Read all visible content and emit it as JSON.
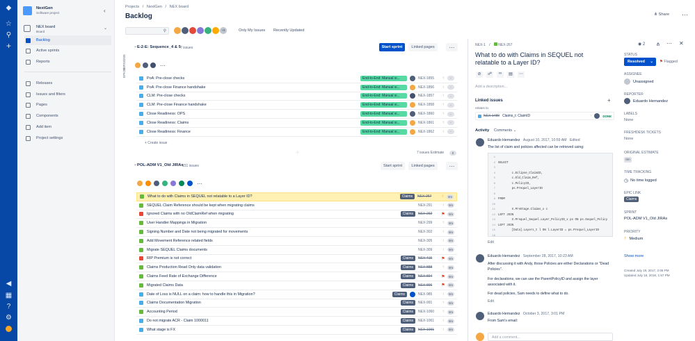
{
  "project": {
    "name": "NextGen",
    "type": "Software project"
  },
  "board": {
    "name": "NEX board",
    "type": "Board"
  },
  "sidebar": {
    "items": [
      {
        "label": "Backlog"
      },
      {
        "label": "Active sprints"
      },
      {
        "label": "Reports"
      },
      {
        "label": "Releases"
      },
      {
        "label": "Issues and filters"
      },
      {
        "label": "Pages"
      },
      {
        "label": "Components"
      },
      {
        "label": "Add item"
      },
      {
        "label": "Project settings"
      }
    ]
  },
  "breadcrumb": {
    "a": "Projects",
    "b": "NextGen",
    "c": "NEX board",
    "sep": "/"
  },
  "page_title": "Backlog",
  "filters": {
    "more": "+9",
    "only_my": "Only My Issues",
    "recent": "Recently Updated"
  },
  "share": "Share",
  "side_labels": {
    "versions": "VERSIONS",
    "epics": "EPICS"
  },
  "sprint1": {
    "name": "E-2-E: Sequence_4 & 5",
    "count": "7 issues",
    "start": "Start sprint",
    "linked": "Linked pages",
    "issues": [
      {
        "summary": "PoA: Pre-close checks",
        "epic": "End-to-End: Manual si...",
        "key": "NEX-1855"
      },
      {
        "summary": "PoA: Pre-close Finance handshake",
        "epic": "End-to-End: Manual si...",
        "key": "NEX-1856"
      },
      {
        "summary": "CLM: Pre-close checks",
        "epic": "End-to-End: Manual si...",
        "key": "NEX-1857"
      },
      {
        "summary": "CLM: Pre-close Finance handshake",
        "epic": "End-to-End: Manual si...",
        "key": "NEX-1858"
      },
      {
        "summary": "Close Readiness: OPS",
        "epic": "End-to-End: Manual si...",
        "key": "NEX-1860"
      },
      {
        "summary": "Close Readiness: Claims",
        "epic": "End-to-End: Manual si...",
        "key": "NEX-1861"
      },
      {
        "summary": "Close Readiness: Finance",
        "epic": "End-to-End: Manual si...",
        "key": "NEX-1862"
      }
    ],
    "create": "+ Create issue",
    "footer_count": "7 issues",
    "estimate_label": "Estimate",
    "estimate_value": "0"
  },
  "sprint2": {
    "name": "POL-ADM V1_Old JIRAs",
    "count": "151 issues",
    "start": "Start sprint",
    "linked": "Linked pages",
    "issues": [
      {
        "summary": "What to do with Claims in SEQUEL not relatable to a Layer ID?",
        "epic": "Claims",
        "key": "NEX-267",
        "est": "0m"
      },
      {
        "summary": "SEQUEL Claim Reference should be kept when migrating claims",
        "epic": "",
        "key": "NEX-291",
        "est": "0m"
      },
      {
        "summary": "Ignored Claims with no OldClaimRef when migrating",
        "epic": "Claims",
        "key": "NEX-292",
        "est": "0m"
      },
      {
        "summary": "User Handler Mappings in Migration",
        "epic": "",
        "key": "NEX-299",
        "est": "0m"
      },
      {
        "summary": "Signing Number and Date not being migrated for movements",
        "epic": "",
        "key": "NEX-302",
        "est": "0m"
      },
      {
        "summary": "Add Movement Reference related fields",
        "epic": "",
        "key": "NEX-305",
        "est": "0m"
      },
      {
        "summary": "Migrate SEQUEL Claims documents",
        "epic": "",
        "key": "NEX-309",
        "est": "0m"
      },
      {
        "summary": "RIP Premium is not correct",
        "epic": "Claims",
        "key": "NEX-415",
        "est": "0m"
      },
      {
        "summary": "Claims Production Read Only data validation",
        "epic": "Claims",
        "key": "NEX-888",
        "est": "0m"
      },
      {
        "summary": "Claims Feed Rate of Exchange Difference",
        "epic": "Claims",
        "key": "NEX-894",
        "est": "0m"
      },
      {
        "summary": "Migrated Claims Data",
        "epic": "Claims",
        "key": "NEX-896",
        "est": "0m"
      },
      {
        "summary": "Date of Loss is NULL on a claim: how to handle this in Migration?",
        "epic": "Claims",
        "key": "NEX-985",
        "est": "0m"
      },
      {
        "summary": "Claims Documentation Migration",
        "epic": "Claims",
        "key": "NEX-991",
        "est": "0m"
      },
      {
        "summary": "Accounting Period",
        "epic": "Claims",
        "key": "NEX-1060",
        "est": "0m"
      },
      {
        "summary": "Do not migrate ACR - Claim 1000011",
        "epic": "Claims",
        "key": "NEX-1061",
        "est": "0m"
      },
      {
        "summary": "What stage is FX",
        "epic": "Claims",
        "key": "NEX-1091",
        "est": "0m"
      }
    ]
  },
  "detail": {
    "crumb_parent": "NEX-1",
    "crumb_key": "NEX-267",
    "watchers": "2",
    "title": "What to do with Claims in SEQUEL not relatable to a Layer ID?",
    "desc_placeholder": "Add a description...",
    "linked_title": "Linked issues",
    "relates_to": "relates to",
    "link_key": "NEX-1489",
    "link_summary": "Claims_t: ClaimID",
    "link_status": "DONE",
    "activity": "Activity",
    "comments_label": "Comments",
    "comment1": {
      "author": "Eduardo Hernandez",
      "date": "August 10, 2017, 10:59 AM",
      "edited": "Edited",
      "text": "The list of claim and policies affected can be retrieved using:",
      "code": [
        "SELECT",
        "        c.Eclipse_ClaimID,",
        "        c.Old_Claim_Ref,",
        "        c.PolicyID,",
        "        ps.Prequel_LayerID",
        "FROM",
        "        X.PreStage.Claims_x c",
        "LEFT JOIN",
        "        X.Prequel_Sequel.Layer_PolicyID_x ps ON ps.Sequel_Policy",
        "LEFT JOIN",
        "        [Data].Layers_t l ON l.LayerID = ps.Prequel_LayerID",
        "WHERE",
        "        l.LayerID IS NULL"
      ],
      "gutter": [
        "1",
        "2",
        "3",
        "4",
        "5",
        "6",
        "7",
        "8",
        "9",
        "10",
        "11",
        "12",
        "13",
        "14",
        "15",
        "16"
      ],
      "edit": "Edit"
    },
    "comment2": {
      "author": "Eduardo Hernandez",
      "date": "September 28, 2017, 10:23 AM",
      "p1": "After discussing it with Andy, those Policies are either Declarations or \"Dead Policies\".",
      "p2": "For declarations, we can use the ParentPolicyID and assign the layer associated with it.",
      "p3": "For dead policies, Sam needs to define what to do.",
      "edit": "Edit"
    },
    "comment3": {
      "author": "Eduardo Hernandez",
      "date": "October 3, 2017, 3:01 PM",
      "text": "From Sam's email:"
    },
    "add_comment": "Add a comment...",
    "fields": {
      "status_label": "STATUS",
      "status": "Resolved",
      "flagged": "Flagged",
      "assignee_label": "ASSIGNEE",
      "assignee": "Unassigned",
      "reporter_label": "REPORTER",
      "reporter": "Eduardo Hernandez",
      "labels_label": "LABELS",
      "labels": "None",
      "fresh_label": "FRESHDESK TICKETS",
      "fresh": "None",
      "orig_label": "ORIGINAL ESTIMATE",
      "orig": "0m",
      "time_label": "TIME TRACKING",
      "time": "No time logged",
      "epic_label": "EPIC LINK",
      "epic": "Claims",
      "sprint_label": "SPRINT",
      "sprint": "POL-ADM V1_Old JIRAs",
      "priority_label": "PRIORITY",
      "priority": "Medium",
      "show_more": "Show more",
      "created": "Created July 19, 2017, 2:08 PM",
      "updated": "Updated July 16, 2018, 1:57 PM"
    }
  },
  "colors": {
    "brand": "#0747a6",
    "primary": "#0052cc",
    "story": "#63ba3c",
    "task": "#4bade8",
    "bug": "#e5493a",
    "epic_green": "#57d9a3",
    "highlight": "#fff0b3"
  }
}
